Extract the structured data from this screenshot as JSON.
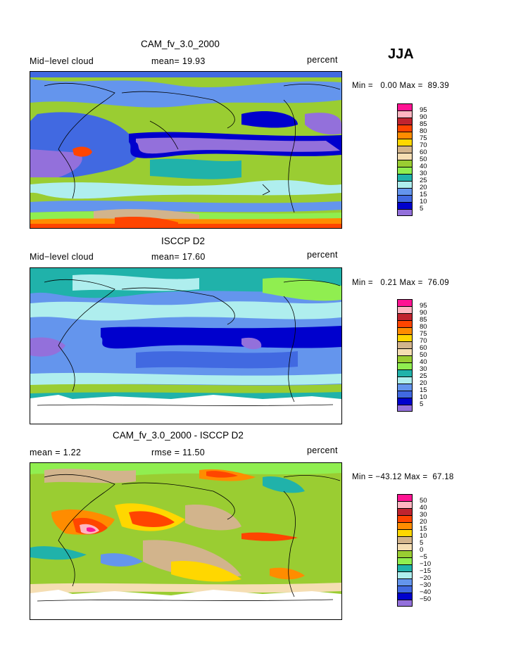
{
  "season": "JJA",
  "charts": [
    {
      "title": "CAM_fv_3.0_2000",
      "left_label": "Mid−level cloud",
      "stat_text": "mean=  19.93",
      "units": "percent",
      "minmax": "Min =   0.00 Max =  89.39",
      "legend_levels": [
        "95",
        "90",
        "85",
        "80",
        "75",
        "70",
        "60",
        "50",
        "40",
        "30",
        "25",
        "20",
        "15",
        "10",
        "5"
      ],
      "colors": [
        "#ff1493",
        "#ffb6c1",
        "#c0232f",
        "#ff4500",
        "#ff8c00",
        "#ffd700",
        "#d2b48c",
        "#f5deb3",
        "#9acd32",
        "#90ee50",
        "#20b2aa",
        "#afeeee",
        "#6495ed",
        "#4169e1",
        "#0000cd",
        "#9370db"
      ]
    },
    {
      "title": "ISCCP D2",
      "left_label": "Mid−level cloud",
      "stat_text": "mean=  17.60",
      "units": "percent",
      "minmax": "Min =   0.21 Max =  76.09",
      "legend_levels": [
        "95",
        "90",
        "85",
        "80",
        "75",
        "70",
        "60",
        "50",
        "40",
        "30",
        "25",
        "20",
        "15",
        "10",
        "5"
      ],
      "colors": [
        "#ff1493",
        "#ffb6c1",
        "#c0232f",
        "#ff4500",
        "#ff8c00",
        "#ffd700",
        "#d2b48c",
        "#f5deb3",
        "#9acd32",
        "#90ee50",
        "#20b2aa",
        "#afeeee",
        "#6495ed",
        "#4169e1",
        "#0000cd",
        "#9370db"
      ]
    },
    {
      "title": "CAM_fv_3.0_2000 - ISCCP D2",
      "left_label": "mean =    1.22",
      "stat_text": "rmse =  11.50",
      "units": "percent",
      "minmax": "Min = −43.12 Max =  67.18",
      "legend_levels": [
        "50",
        "40",
        "30",
        "20",
        "15",
        "10",
        "5",
        "0",
        "−5",
        "−10",
        "−15",
        "−20",
        "−30",
        "−40",
        "−50"
      ],
      "colors": [
        "#ff1493",
        "#ffb6c1",
        "#c0232f",
        "#ff4500",
        "#ff8c00",
        "#ffd700",
        "#d2b48c",
        "#f5deb3",
        "#9acd32",
        "#90ee50",
        "#20b2aa",
        "#afeeee",
        "#6495ed",
        "#4169e1",
        "#0000cd",
        "#9370db"
      ]
    }
  ],
  "chart_data": [
    {
      "type": "heatmap",
      "title": "CAM_fv_3.0_2000",
      "field": "Mid−level cloud",
      "units": "percent",
      "mean": 19.93,
      "min": 0.0,
      "max": 89.39,
      "contour_levels": [
        5,
        10,
        15,
        20,
        25,
        30,
        40,
        50,
        60,
        70,
        75,
        80,
        85,
        90,
        95
      ]
    },
    {
      "type": "heatmap",
      "title": "ISCCP D2",
      "field": "Mid−level cloud",
      "units": "percent",
      "mean": 17.6,
      "min": 0.21,
      "max": 76.09,
      "contour_levels": [
        5,
        10,
        15,
        20,
        25,
        30,
        40,
        50,
        60,
        70,
        75,
        80,
        85,
        90,
        95
      ]
    },
    {
      "type": "heatmap",
      "title": "CAM_fv_3.0_2000 - ISCCP D2",
      "units": "percent",
      "mean": 1.22,
      "rmse": 11.5,
      "min": -43.12,
      "max": 67.18,
      "contour_levels": [
        -50,
        -40,
        -30,
        -20,
        -15,
        -10,
        -5,
        0,
        5,
        10,
        15,
        20,
        30,
        40,
        50
      ]
    }
  ]
}
